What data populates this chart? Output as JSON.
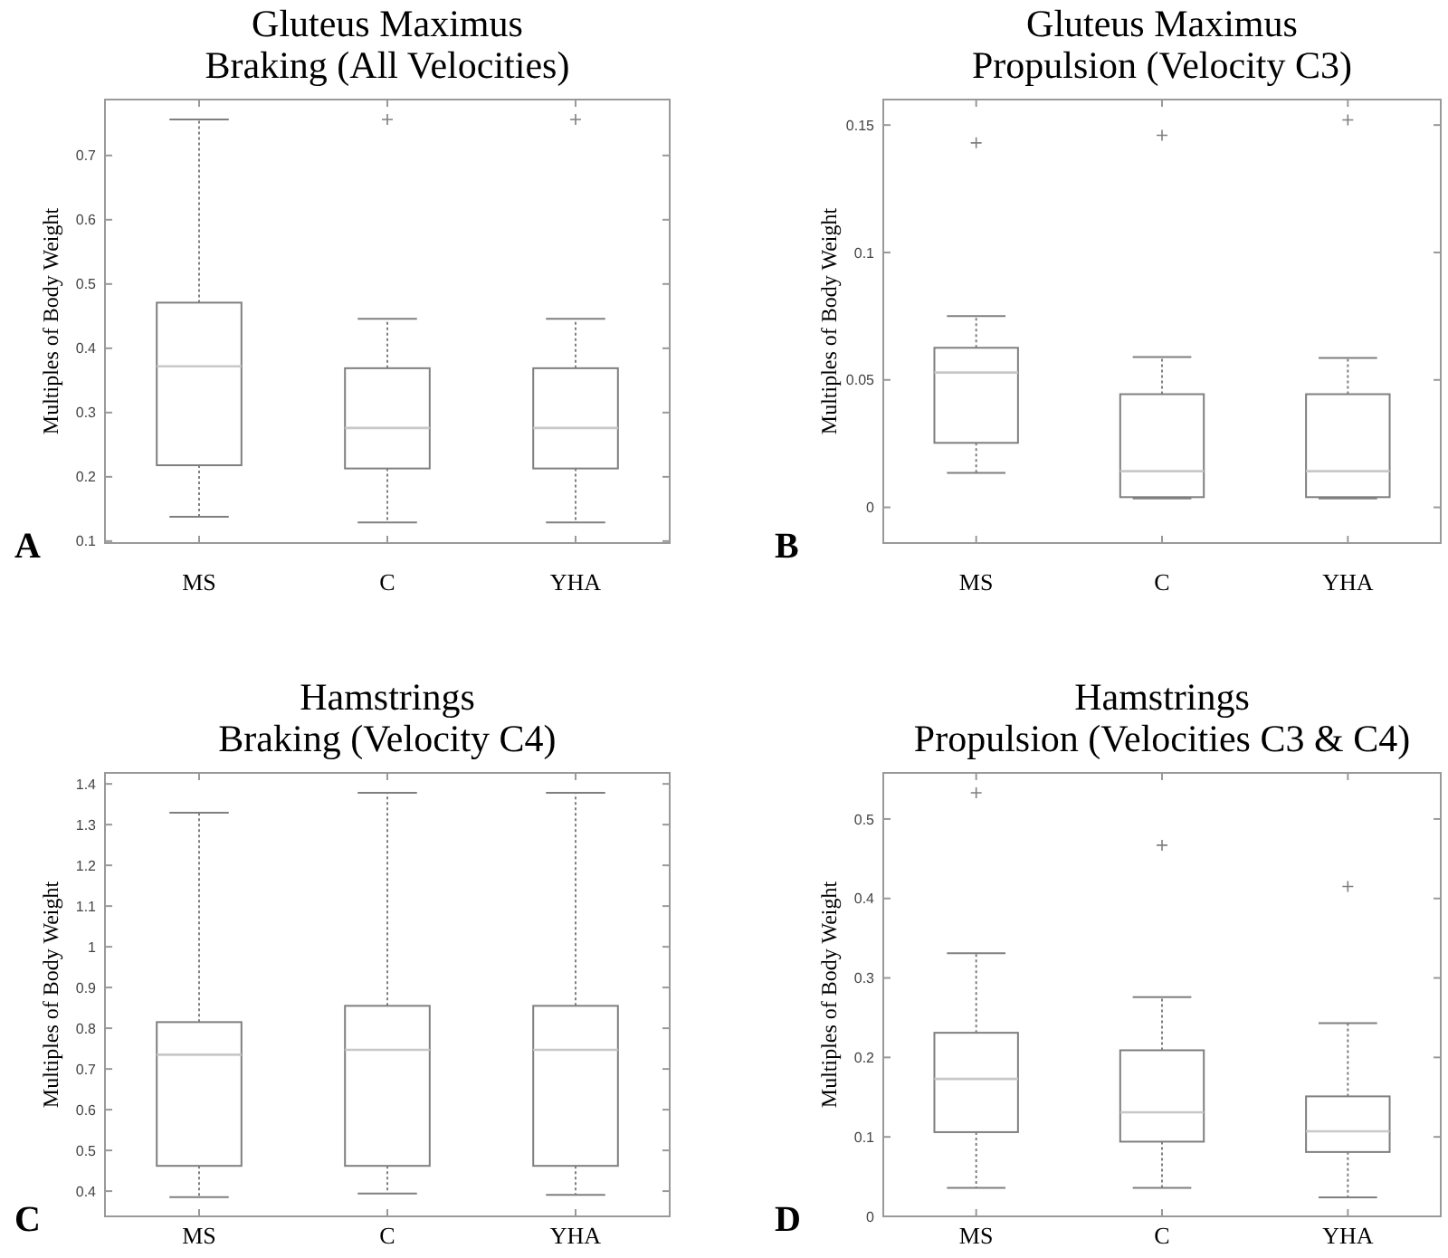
{
  "chart_data": [
    {
      "type": "box",
      "title": "Gluteus Maximus\nBraking (All Velocities)",
      "ylabel": "Multiples of Body Weight",
      "annotations": [
        "A"
      ],
      "categories": [
        "MS",
        "C",
        "YHA"
      ],
      "ylim": [
        0.097,
        0.787
      ],
      "yticks": [
        0.1,
        0.2,
        0.3,
        0.4,
        0.5,
        0.6,
        0.7
      ],
      "grid": false,
      "series": [
        {
          "color": "#7f7f7f",
          "boxes": [
            {
              "low": 0.138,
              "q1": 0.218,
              "median": 0.372,
              "q3": 0.471,
              "high": 0.756
            },
            {
              "low": 0.129,
              "q1": 0.213,
              "median": 0.276,
              "q3": 0.369,
              "high": 0.446,
              "outliers": [
                0.756
              ]
            },
            {
              "low": 0.129,
              "q1": 0.213,
              "median": 0.276,
              "q3": 0.369,
              "high": 0.446,
              "outliers": [
                0.756
              ]
            }
          ]
        }
      ]
    },
    {
      "type": "box",
      "title": "Gluteus Maximus\nPropulsion (Velocity C3)",
      "ylabel": "Multiples of Body Weight",
      "annotations": [
        "B"
      ],
      "categories": [
        "MS",
        "C",
        "YHA"
      ],
      "ylim": [
        -0.014,
        0.16
      ],
      "yticks": [
        0,
        0.05,
        0.1,
        0.15
      ],
      "grid": false,
      "series": [
        {
          "color": "#7f7f7f",
          "boxes": [
            {
              "low": 0.0135,
              "q1": 0.0253,
              "median": 0.0529,
              "q3": 0.0626,
              "high": 0.075,
              "outliers": [
                0.143
              ]
            },
            {
              "low": 0.0035,
              "q1": 0.004,
              "median": 0.0142,
              "q3": 0.0444,
              "high": 0.059,
              "outliers": [
                0.146
              ]
            },
            {
              "low": 0.0035,
              "q1": 0.004,
              "median": 0.0142,
              "q3": 0.0444,
              "high": 0.0586,
              "outliers": [
                0.152
              ]
            }
          ]
        }
      ]
    },
    {
      "type": "box",
      "title": "Hamstrings\nBraking (Velocity C4)",
      "ylabel": "Multiples of Body Weight",
      "annotations": [
        "C"
      ],
      "categories": [
        "MS",
        "C",
        "YHA"
      ],
      "ylim": [
        0.338,
        1.427
      ],
      "yticks": [
        0.4,
        0.5,
        0.6,
        0.7,
        0.8,
        0.9,
        1,
        1.1,
        1.2,
        1.3,
        1.4
      ],
      "grid": false,
      "series": [
        {
          "color": "#7f7f7f",
          "boxes": [
            {
              "low": 0.385,
              "q1": 0.462,
              "median": 0.735,
              "q3": 0.815,
              "high": 1.329
            },
            {
              "low": 0.394,
              "q1": 0.462,
              "median": 0.747,
              "q3": 0.855,
              "high": 1.378
            },
            {
              "low": 0.391,
              "q1": 0.462,
              "median": 0.747,
              "q3": 0.855,
              "high": 1.378
            }
          ]
        }
      ]
    },
    {
      "type": "box",
      "title": "Hamstrings\nPropulsion (Velocities C3 & C4)",
      "ylabel": "Multiples of Body Weight",
      "annotations": [
        "D"
      ],
      "categories": [
        "MS",
        "C",
        "YHA"
      ],
      "ylim": [
        0,
        0.558
      ],
      "yticks": [
        0,
        0.1,
        0.2,
        0.3,
        0.4,
        0.5
      ],
      "grid": false,
      "series": [
        {
          "color": "#7f7f7f",
          "boxes": [
            {
              "low": 0.036,
              "q1": 0.106,
              "median": 0.173,
              "q3": 0.231,
              "high": 0.331,
              "outliers": [
                0.533
              ]
            },
            {
              "low": 0.036,
              "q1": 0.094,
              "median": 0.131,
              "q3": 0.209,
              "high": 0.276,
              "outliers": [
                0.467
              ]
            },
            {
              "low": 0.024,
              "q1": 0.081,
              "median": 0.107,
              "q3": 0.151,
              "high": 0.243,
              "outliers": [
                0.415
              ]
            }
          ]
        }
      ]
    }
  ]
}
